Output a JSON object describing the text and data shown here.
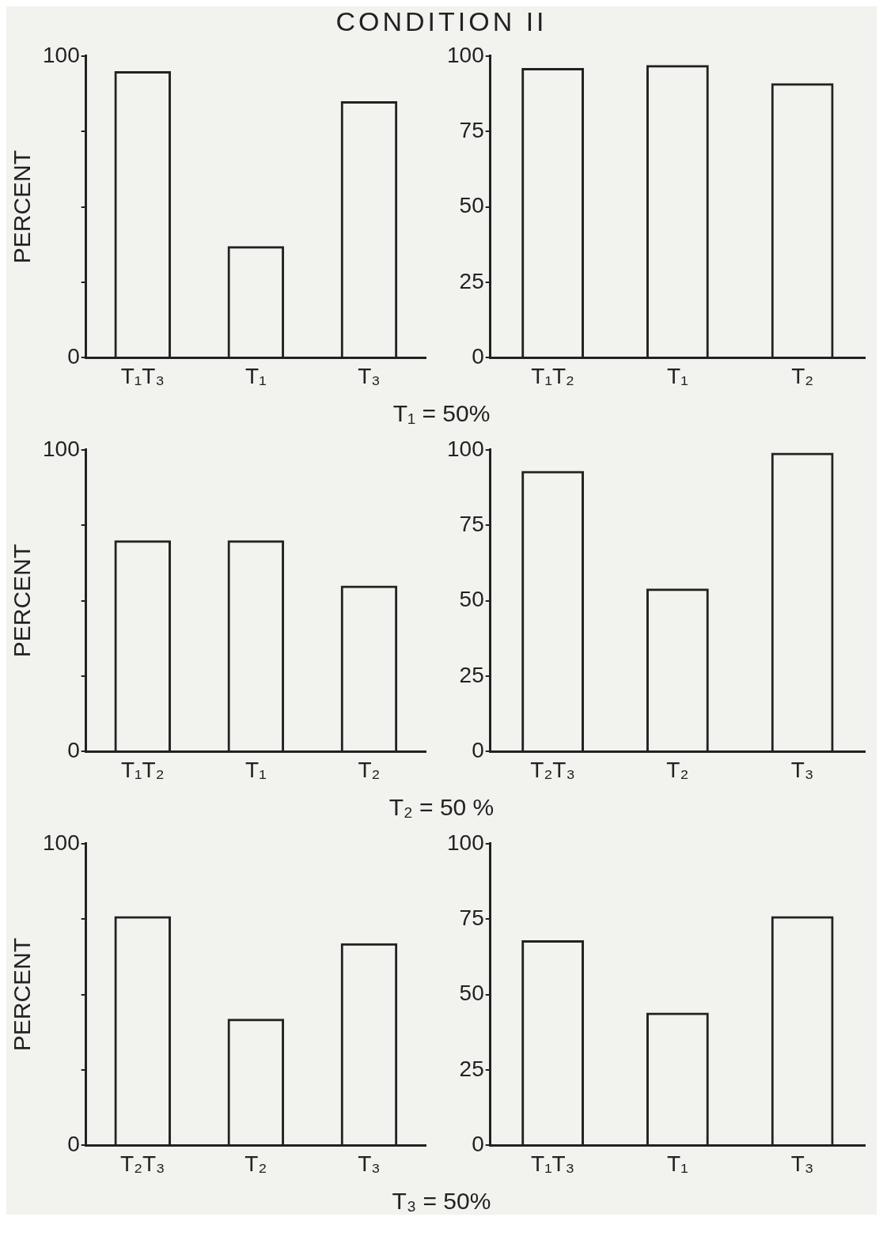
{
  "chart_data": [
    {
      "type": "bar",
      "title": "CONDITION II",
      "ylabel": "PERCENT",
      "categories": [
        "T₁T₃",
        "T₁",
        "T₃"
      ],
      "values": [
        95,
        37,
        85
      ],
      "color": "#222222",
      "ylim": [
        0,
        100
      ],
      "yticks": [
        0,
        {
          "value": 25,
          "label": null
        },
        {
          "value": 50,
          "label": null
        },
        {
          "value": 75,
          "label": null
        },
        100
      ],
      "grid": false,
      "legend": false,
      "annotations": [
        "T₁ = 50%"
      ]
    },
    {
      "type": "bar",
      "categories": [
        "T₁T₂",
        "T₁",
        "T₂"
      ],
      "values": [
        96,
        97,
        91
      ],
      "color": "#222222",
      "ylim": [
        0,
        100
      ],
      "yticks": [
        0,
        25,
        50,
        75,
        100
      ],
      "grid": false,
      "legend": false
    },
    {
      "type": "bar",
      "ylabel": "PERCENT",
      "categories": [
        "T₁T₂",
        "T₁",
        "T₂"
      ],
      "values": [
        70,
        70,
        55
      ],
      "color": "#222222",
      "ylim": [
        0,
        100
      ],
      "yticks": [
        0,
        {
          "value": 25,
          "label": null
        },
        {
          "value": 50,
          "label": null
        },
        {
          "value": 75,
          "label": null
        },
        100
      ],
      "grid": false,
      "legend": false,
      "annotations": [
        "T₂ = 50 %"
      ]
    },
    {
      "type": "bar",
      "categories": [
        "T₂T₃",
        "T₂",
        "T₃"
      ],
      "values": [
        93,
        54,
        99
      ],
      "color": "#222222",
      "ylim": [
        0,
        100
      ],
      "yticks": [
        0,
        25,
        50,
        75,
        100
      ],
      "grid": false,
      "legend": false
    },
    {
      "type": "bar",
      "ylabel": "PERCENT",
      "categories": [
        "T₂T₃",
        "T₂",
        "T₃"
      ],
      "values": [
        76,
        42,
        67
      ],
      "color": "#222222",
      "ylim": [
        0,
        100
      ],
      "yticks": [
        0,
        {
          "value": 25,
          "label": null
        },
        {
          "value": 50,
          "label": null
        },
        {
          "value": 75,
          "label": null
        },
        100
      ],
      "grid": false,
      "legend": false,
      "annotations": [
        "T₃ = 50%"
      ]
    },
    {
      "type": "bar",
      "categories": [
        "T₁T₃",
        "T₁",
        "T₃"
      ],
      "values": [
        68,
        44,
        76
      ],
      "color": "#222222",
      "ylim": [
        0,
        100
      ],
      "yticks": [
        0,
        25,
        50,
        75,
        100
      ],
      "grid": false,
      "legend": false
    }
  ]
}
